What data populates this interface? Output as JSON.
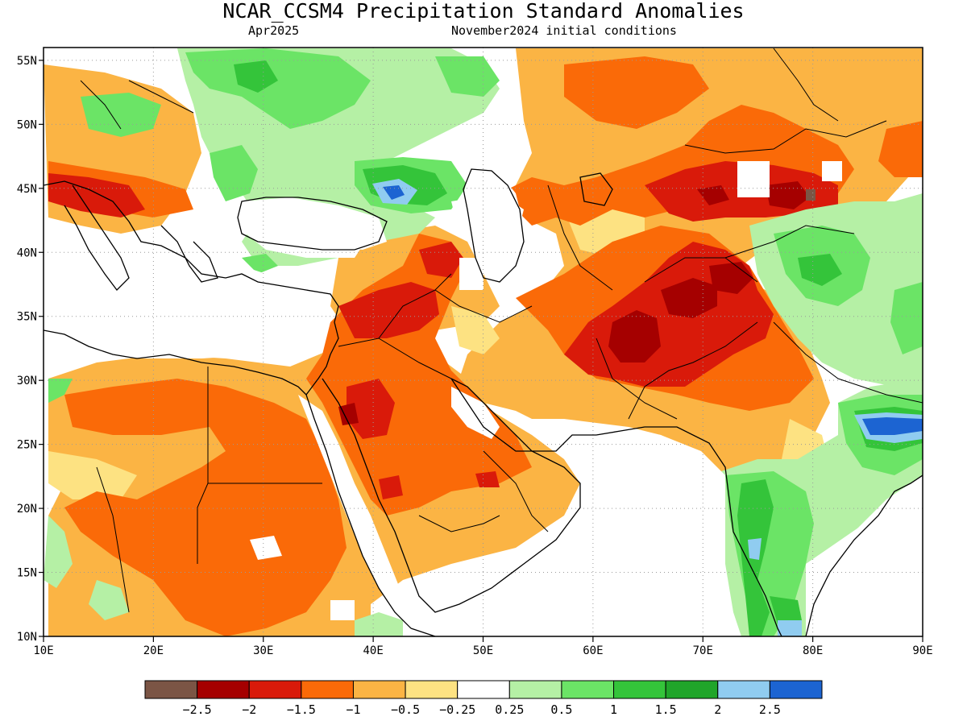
{
  "title": "NCAR_CCSM4 Precipitation Standard Anomalies",
  "valid_month": "Apr2025",
  "init_label": "November2024 initial conditions",
  "map": {
    "lon_range": [
      10,
      90
    ],
    "lat_range": [
      10,
      56
    ],
    "lon_ticks": [
      10,
      20,
      30,
      40,
      50,
      60,
      70,
      80,
      90
    ],
    "lon_tick_labels": [
      "10E",
      "20E",
      "30E",
      "40E",
      "50E",
      "60E",
      "70E",
      "80E",
      "90E"
    ],
    "lat_ticks": [
      10,
      15,
      20,
      25,
      30,
      35,
      40,
      45,
      50,
      55
    ],
    "lat_tick_labels": [
      "10N",
      "15N",
      "20N",
      "25N",
      "30N",
      "35N",
      "40N",
      "45N",
      "50N",
      "55N"
    ]
  },
  "colorbar": {
    "colors": [
      "#7b5545",
      "#a50000",
      "#d91a0a",
      "#fa6a08",
      "#fbb444",
      "#fde282",
      "#ffffff",
      "#b5f0a5",
      "#6be466",
      "#34c43a",
      "#20a52a",
      "#90ccf0",
      "#1c64d2"
    ],
    "labels": [
      "-2.5",
      "-2",
      "-1.5",
      "-1",
      "-0.5",
      "-0.25",
      "0.25",
      "0.5",
      "1",
      "1.5",
      "2",
      "2.5"
    ]
  }
}
